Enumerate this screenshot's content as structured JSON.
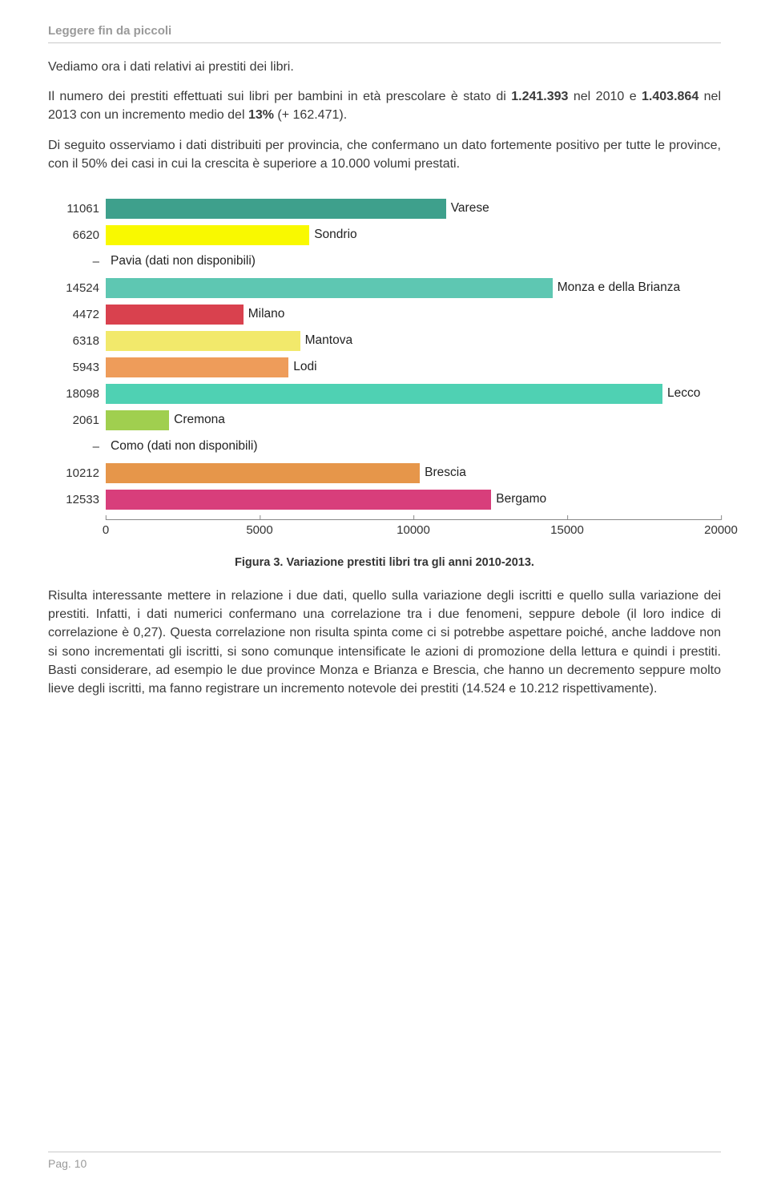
{
  "header": {
    "title": "Leggere fin da piccoli"
  },
  "paragraphs": {
    "p1": "Vediamo ora i dati relativi ai prestiti dei libri.",
    "p2_a": "Il numero dei prestiti effettuati sui libri per bambini in età prescolare è stato di ",
    "p2_b": "1.241.393",
    "p2_c": " nel 2010 e ",
    "p2_d": "1.403.864",
    "p2_e": " nel 2013 con un incremento medio del ",
    "p2_f": "13%",
    "p2_g": " (+ 162.471).",
    "p3": "Di seguito osserviamo i dati distribuiti per provincia, che confermano un dato fortemente positivo per tutte le province, con il 50% dei casi in cui la crescita è superiore a 10.000 volumi prestati.",
    "p4": "Risulta interessante mettere in relazione i due dati, quello sulla variazione degli iscritti e quello sulla variazione dei prestiti. Infatti, i dati numerici confermano una correlazione tra i due fenomeni, seppure debole (il loro indice di correlazione è 0,27). Questa correlazione non risulta spinta come ci si potrebbe aspettare poiché, anche laddove non si sono incrementati gli iscritti, si sono comunque intensificate le azioni di promozione della lettura e quindi i prestiti. Basti considerare, ad esempio le due province Monza e Brianza e Brescia, che hanno un decremento seppure molto lieve degli iscritti, ma fanno registrare un incremento notevole dei prestiti (14.524 e 10.212 rispettivamente)."
  },
  "chart": {
    "type": "bar-horizontal",
    "caption": "Figura 3. Variazione prestiti libri tra gli anni 2010-2013.",
    "xmax": 20000,
    "xticks": [
      {
        "value": 0,
        "label": "0"
      },
      {
        "value": 5000,
        "label": "5000"
      },
      {
        "value": 10000,
        "label": "10000"
      },
      {
        "value": 15000,
        "label": "15000"
      },
      {
        "value": 20000,
        "label": "20000"
      }
    ],
    "rows": [
      {
        "ylabel": "11061",
        "value": 11061,
        "color": "#3ea08c",
        "label": "Varese"
      },
      {
        "ylabel": "6620",
        "value": 6620,
        "color": "#f9f900",
        "label": "Sondrio"
      },
      {
        "ylabel": "–",
        "value": 0,
        "color": "#000000",
        "label": "Pavia (dati non disponibili)"
      },
      {
        "ylabel": "14524",
        "value": 14524,
        "color": "#5ec7b2",
        "label": "Monza e della Brianza"
      },
      {
        "ylabel": "4472",
        "value": 4472,
        "color": "#d9414e",
        "label": "Milano"
      },
      {
        "ylabel": "6318",
        "value": 6318,
        "color": "#f2e96b",
        "label": "Mantova"
      },
      {
        "ylabel": "5943",
        "value": 5943,
        "color": "#ee9c5a",
        "label": "Lodi"
      },
      {
        "ylabel": "18098",
        "value": 18098,
        "color": "#4fd1b3",
        "label": "Lecco"
      },
      {
        "ylabel": "2061",
        "value": 2061,
        "color": "#a0cf4f",
        "label": "Cremona"
      },
      {
        "ylabel": "–",
        "value": 0,
        "color": "#000000",
        "label": "Como (dati non disponibili)"
      },
      {
        "ylabel": "10212",
        "value": 10212,
        "color": "#e6964a",
        "label": "Brescia"
      },
      {
        "ylabel": "12533",
        "value": 12533,
        "color": "#d83e7b",
        "label": "Bergamo"
      }
    ]
  },
  "footer": {
    "page": "Pag. 10"
  }
}
